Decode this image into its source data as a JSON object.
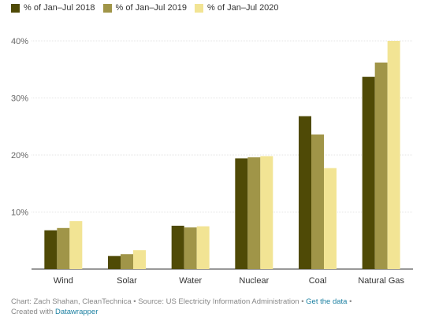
{
  "legend": [
    {
      "label": "% of Jan–Jul 2018",
      "color": "#4f4a06"
    },
    {
      "label": "% of Jan–Jul 2019",
      "color": "#a09548"
    },
    {
      "label": "% of Jan–Jul 2020",
      "color": "#f2e494"
    }
  ],
  "chart_data": {
    "type": "bar",
    "categories": [
      "Wind",
      "Solar",
      "Water",
      "Nuclear",
      "Coal",
      "Natural Gas"
    ],
    "series": [
      {
        "name": "% of Jan–Jul 2018",
        "values": [
          6.8,
          2.3,
          7.6,
          19.4,
          26.8,
          33.7
        ]
      },
      {
        "name": "% of Jan–Jul 2019",
        "values": [
          7.2,
          2.6,
          7.3,
          19.6,
          23.6,
          36.2
        ]
      },
      {
        "name": "% of Jan–Jul 2020",
        "values": [
          8.4,
          3.3,
          7.5,
          19.8,
          17.7,
          40.0
        ]
      }
    ],
    "yticks": [
      10,
      20,
      30,
      40
    ],
    "ytick_labels": [
      "10%",
      "20%",
      "30%",
      "40%"
    ],
    "ylim": [
      0,
      40
    ],
    "grid": true,
    "legend_position": "top-left"
  },
  "footer": {
    "credit": "Chart: Zach Shahan, CleanTechnica • Source: US Electricity Information Administration • ",
    "get_data": "Get the data",
    "sep": " •",
    "created_prefix": "Created with ",
    "created_link": "Datawrapper"
  }
}
